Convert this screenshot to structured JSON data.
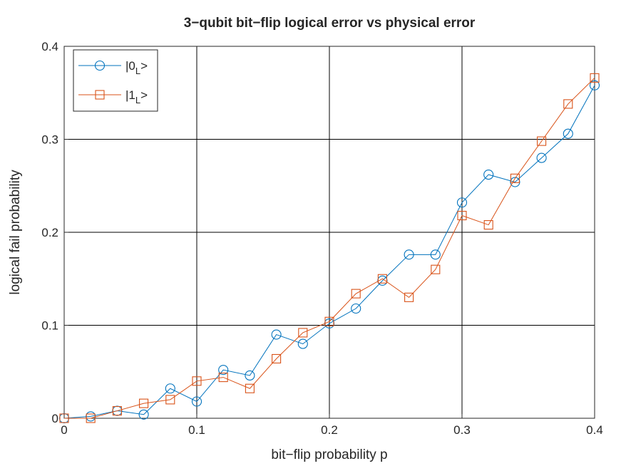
{
  "colors": {
    "series0": "#0072bd",
    "series1": "#d95319",
    "grid": "#000000",
    "axis": "#262626",
    "background": "#ffffff"
  },
  "chart_data": {
    "type": "line",
    "title": "3−qubit bit−flip logical error vs physical error",
    "xlabel": "bit−flip probability p",
    "ylabel": "logical fail probability",
    "xlim": [
      0,
      0.4
    ],
    "ylim": [
      0,
      0.4
    ],
    "xticks": [
      0,
      0.1,
      0.2,
      0.3,
      0.4
    ],
    "xtick_labels": [
      "0",
      "0.1",
      "0.2",
      "0.3",
      "0.4"
    ],
    "yticks": [
      0,
      0.1,
      0.2,
      0.3,
      0.4
    ],
    "ytick_labels": [
      "0",
      "0.1",
      "0.2",
      "0.3",
      "0.4"
    ],
    "grid": true,
    "legend_position": "top-left",
    "x": [
      0,
      0.02,
      0.04,
      0.06,
      0.08,
      0.1,
      0.12,
      0.14,
      0.16,
      0.18,
      0.2,
      0.22,
      0.24,
      0.26,
      0.28,
      0.3,
      0.32,
      0.34,
      0.36,
      0.38,
      0.4
    ],
    "series": [
      {
        "name_main": "|0",
        "name_sub": "L",
        "name_end": ">",
        "marker": "circle",
        "color": "#0072bd",
        "values": [
          0,
          0.002,
          0.008,
          0.004,
          0.032,
          0.018,
          0.052,
          0.046,
          0.09,
          0.08,
          0.102,
          0.118,
          0.148,
          0.176,
          0.176,
          0.232,
          0.262,
          0.254,
          0.28,
          0.306,
          0.358
        ]
      },
      {
        "name_main": "|1",
        "name_sub": "L",
        "name_end": ">",
        "marker": "square",
        "color": "#d95319",
        "values": [
          0,
          0,
          0.008,
          0.016,
          0.02,
          0.04,
          0.044,
          0.032,
          0.064,
          0.092,
          0.104,
          0.134,
          0.15,
          0.13,
          0.16,
          0.218,
          0.208,
          0.258,
          0.298,
          0.338,
          0.366
        ]
      }
    ]
  }
}
